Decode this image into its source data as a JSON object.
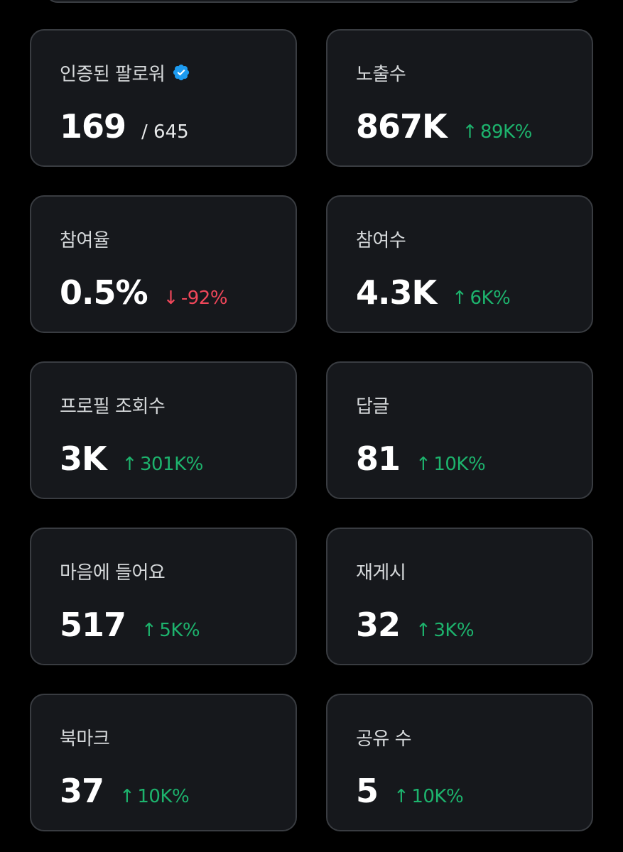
{
  "colors": {
    "background": "#000000",
    "card": "#16181c",
    "border": "#393c41",
    "positive": "#1db36d",
    "negative": "#f0475a",
    "verified_badge": "#1d9bf0"
  },
  "cards": [
    {
      "label": "인증된 팔로워",
      "value": "169",
      "suffix": "/ 645",
      "verified": true
    },
    {
      "label": "노출수",
      "value": "867K",
      "arrow": "↑",
      "delta": "89K%",
      "trend": "up"
    },
    {
      "label": "참여율",
      "value": "0.5%",
      "arrow": "↓",
      "delta": "-92%",
      "trend": "down"
    },
    {
      "label": "참여수",
      "value": "4.3K",
      "arrow": "↑",
      "delta": "6K%",
      "trend": "up"
    },
    {
      "label": "프로필 조회수",
      "value": "3K",
      "arrow": "↑",
      "delta": "301K%",
      "trend": "up"
    },
    {
      "label": "답글",
      "value": "81",
      "arrow": "↑",
      "delta": "10K%",
      "trend": "up"
    },
    {
      "label": "마음에 들어요",
      "value": "517",
      "arrow": "↑",
      "delta": "5K%",
      "trend": "up"
    },
    {
      "label": "재게시",
      "value": "32",
      "arrow": "↑",
      "delta": "3K%",
      "trend": "up"
    },
    {
      "label": "북마크",
      "value": "37",
      "arrow": "↑",
      "delta": "10K%",
      "trend": "up"
    },
    {
      "label": "공유 수",
      "value": "5",
      "arrow": "↑",
      "delta": "10K%",
      "trend": "up"
    }
  ]
}
